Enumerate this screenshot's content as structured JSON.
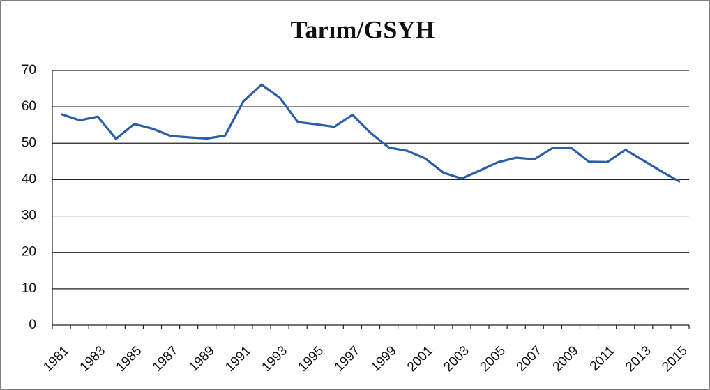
{
  "chart_data": {
    "type": "line",
    "title": "Tarım/GSYH",
    "categories": [
      "1981",
      null,
      "1983",
      null,
      "1985",
      null,
      "1987",
      null,
      "1989",
      null,
      "1991",
      null,
      "1993",
      null,
      "1995",
      null,
      "1997",
      null,
      "1999",
      null,
      "2001",
      null,
      "2003",
      null,
      "2005",
      null,
      "2007",
      null,
      "2009",
      null,
      "2011",
      null,
      "2013",
      null,
      "2015"
    ],
    "values": [
      58,
      56.3,
      57.3,
      51.2,
      55.3,
      54,
      52,
      51.6,
      51.3,
      52.1,
      61.5,
      66.1,
      62.5,
      55.8,
      55.2,
      54.5,
      57.8,
      52.8,
      48.8,
      47.9,
      45.8,
      41.9,
      40.3,
      42.5,
      44.8,
      46,
      45.6,
      48.7,
      48.8,
      44.9,
      44.8,
      48.2,
      45.2,
      42.2,
      39.4
    ],
    "color": "#2a5ea8",
    "ylim": [
      0,
      70
    ],
    "yticks": [
      0,
      10,
      20,
      30,
      40,
      50,
      60,
      70
    ],
    "grid": true
  }
}
